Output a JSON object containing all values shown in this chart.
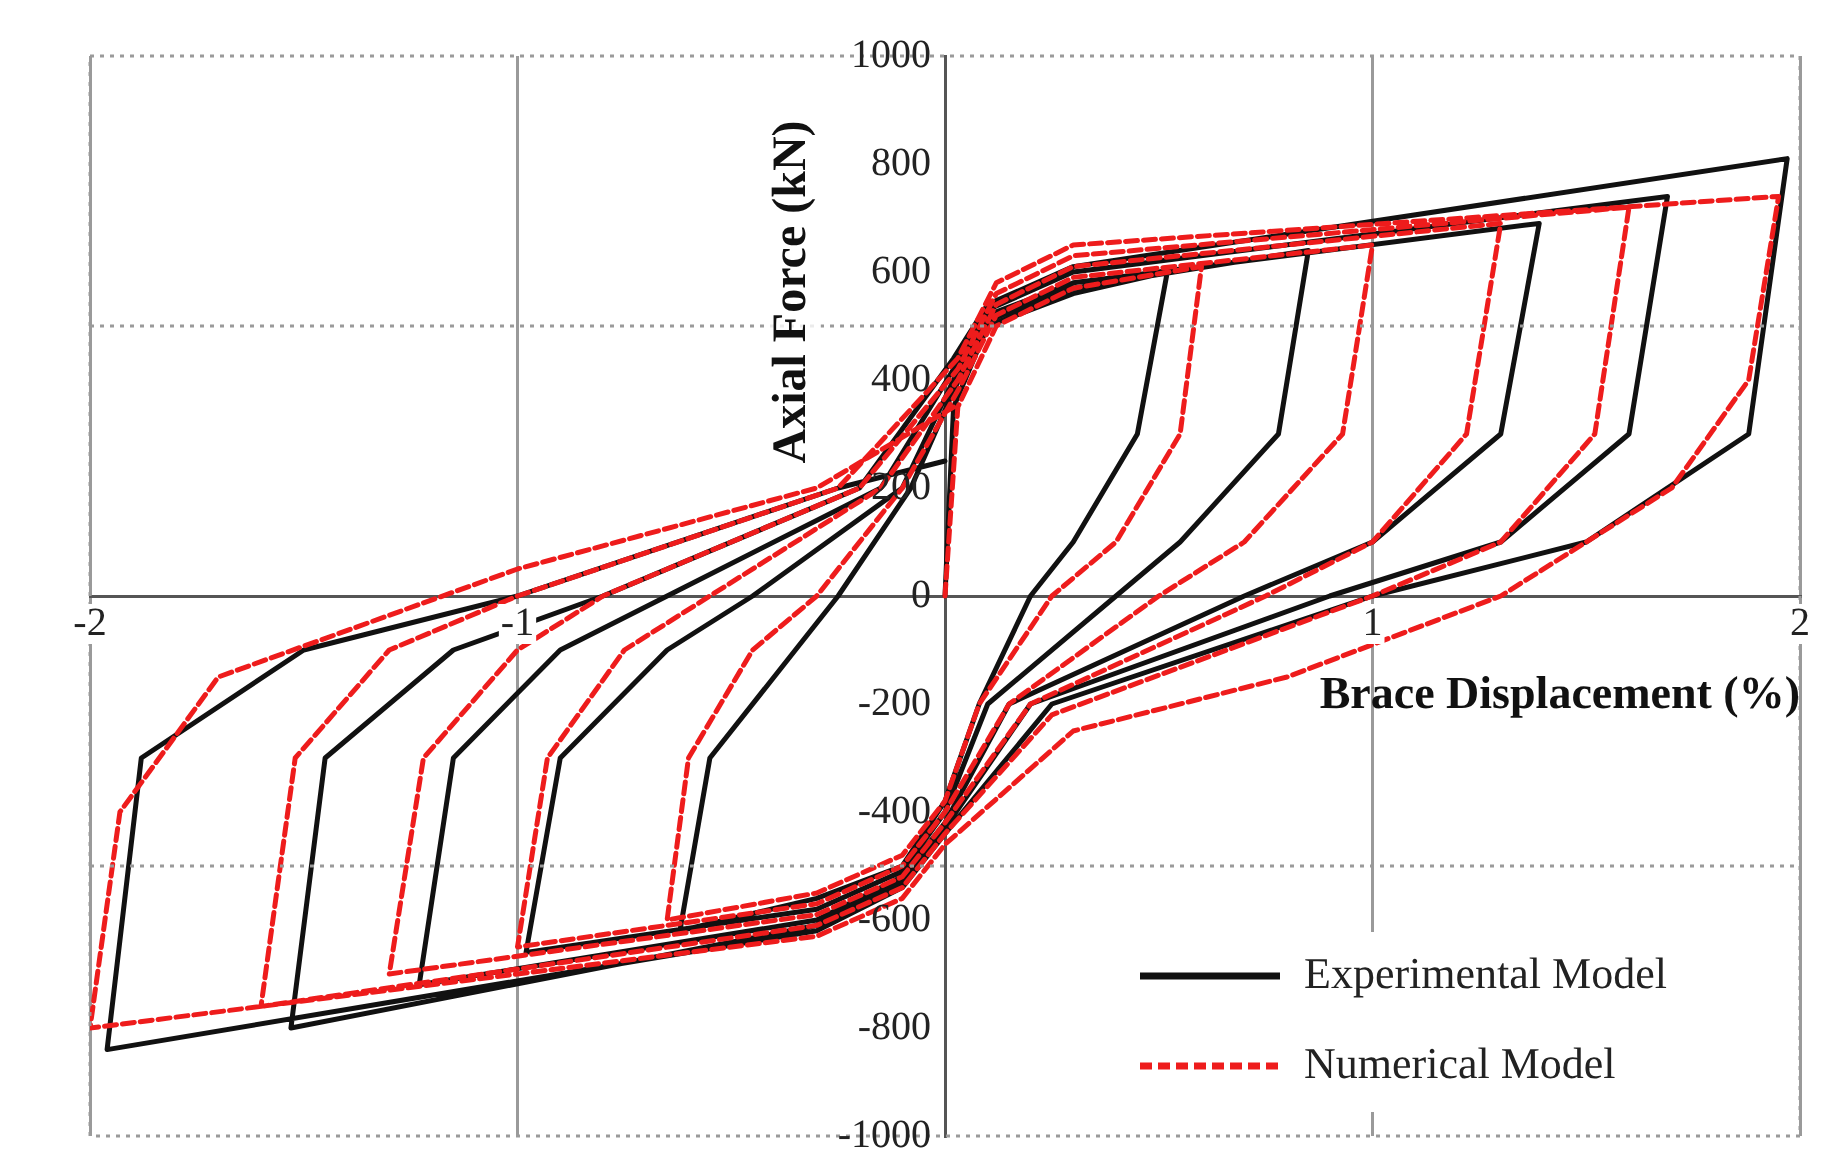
{
  "chart_data": {
    "type": "line",
    "xlabel": "Brace Displacement (%)",
    "ylabel": "Axial Force (kN)",
    "xlim": [
      -2,
      2
    ],
    "xticks": [
      -2,
      -1,
      1,
      2
    ],
    "ylim": [
      -1000,
      1000
    ],
    "yticks": [
      1000,
      800,
      600,
      400,
      200,
      0,
      -200,
      -400,
      -600,
      -800,
      -1000
    ],
    "grid": "x",
    "legend": "bottom right",
    "marker": "none",
    "ref_lines": [
      {
        "axis": "y",
        "value": 500,
        "label": null,
        "color": "#9a9a9a",
        "line_style": "dotted"
      },
      {
        "axis": "y",
        "value": -500,
        "label": null,
        "color": "#9a9a9a",
        "line_style": "dotted"
      }
    ],
    "series": [
      {
        "name": "Experimental Model",
        "color": "#111111",
        "line_style": "solid",
        "x": [
          0,
          0.02,
          0.1,
          0.3,
          0.52,
          0.45,
          0.3,
          0.2,
          0.08,
          0,
          -0.1,
          -0.3,
          -0.62,
          -0.55,
          -0.35,
          -0.25,
          -0.08,
          0.02,
          0.1,
          0.3,
          0.85,
          0.78,
          0.55,
          0.4,
          0.1,
          0,
          -0.1,
          -0.3,
          -0.98,
          -0.9,
          -0.65,
          -0.45,
          -0.1,
          0.02,
          0.1,
          0.3,
          1.39,
          1.3,
          1.0,
          0.7,
          0.15,
          0,
          -0.1,
          -0.3,
          -1.23,
          -1.15,
          -0.9,
          -0.65,
          -0.15,
          0.02,
          0.1,
          0.3,
          1.69,
          1.6,
          1.3,
          0.9,
          0.2,
          0,
          -0.1,
          -0.3,
          -1.53,
          -1.45,
          -1.15,
          -0.8,
          -0.2,
          0.02,
          0.1,
          0.3,
          1.97,
          1.88,
          1.5,
          1.0,
          0.25,
          0,
          -0.1,
          -0.3,
          -1.96,
          -1.88,
          -1.5,
          -1.0,
          -0.25,
          0
        ],
        "values": [
          0,
          350,
          500,
          560,
          600,
          300,
          100,
          0,
          -200,
          -380,
          -500,
          -560,
          -620,
          -300,
          -100,
          0,
          200,
          380,
          510,
          570,
          640,
          300,
          100,
          0,
          -200,
          -400,
          -510,
          -580,
          -660,
          -300,
          -100,
          0,
          200,
          400,
          520,
          580,
          690,
          300,
          100,
          0,
          -200,
          -420,
          -520,
          -600,
          -720,
          -300,
          -100,
          0,
          200,
          420,
          530,
          600,
          740,
          300,
          100,
          0,
          -200,
          -430,
          -530,
          -610,
          -800,
          -300,
          -100,
          0,
          200,
          440,
          540,
          610,
          810,
          300,
          100,
          0,
          -200,
          -440,
          -540,
          -620,
          -840,
          -300,
          -100,
          0,
          200,
          250
        ]
      },
      {
        "name": "Numerical Model",
        "color": "#ee1c1c",
        "line_style": "dashed",
        "x": [
          0,
          0.03,
          0.12,
          0.3,
          0.6,
          0.55,
          0.4,
          0.25,
          0.08,
          0,
          -0.1,
          -0.3,
          -0.65,
          -0.6,
          -0.45,
          -0.3,
          -0.1,
          0.03,
          0.12,
          0.3,
          1.0,
          0.93,
          0.7,
          0.5,
          0.15,
          0,
          -0.1,
          -0.3,
          -1.0,
          -0.93,
          -0.75,
          -0.55,
          -0.15,
          0.03,
          0.12,
          0.3,
          1.3,
          1.22,
          1.0,
          0.75,
          0.2,
          0,
          -0.1,
          -0.3,
          -1.3,
          -1.22,
          -1.0,
          -0.8,
          -0.2,
          0.03,
          0.12,
          0.3,
          1.6,
          1.52,
          1.3,
          1.0,
          0.25,
          0,
          -0.1,
          -0.3,
          -1.6,
          -1.52,
          -1.3,
          -1.0,
          -0.25,
          0.03,
          0.12,
          0.3,
          1.95,
          1.88,
          1.7,
          1.3,
          0.8,
          0.3,
          0,
          -0.1,
          -0.3,
          -2.0,
          -1.93,
          -1.7,
          -1.0,
          -0.3,
          0.02
        ],
        "values": [
          0,
          350,
          500,
          570,
          610,
          300,
          100,
          0,
          -200,
          -380,
          -480,
          -550,
          -600,
          -300,
          -100,
          0,
          200,
          380,
          520,
          590,
          650,
          300,
          100,
          0,
          -200,
          -400,
          -500,
          -570,
          -650,
          -300,
          -100,
          0,
          200,
          400,
          540,
          610,
          690,
          300,
          100,
          0,
          -200,
          -420,
          -520,
          -590,
          -700,
          -300,
          -100,
          0,
          200,
          420,
          560,
          630,
          720,
          300,
          100,
          0,
          -220,
          -440,
          -540,
          -610,
          -760,
          -300,
          -100,
          0,
          200,
          440,
          580,
          650,
          740,
          400,
          200,
          0,
          -150,
          -250,
          -460,
          -560,
          -630,
          -800,
          -400,
          -150,
          50,
          200,
          350
        ]
      }
    ]
  }
}
